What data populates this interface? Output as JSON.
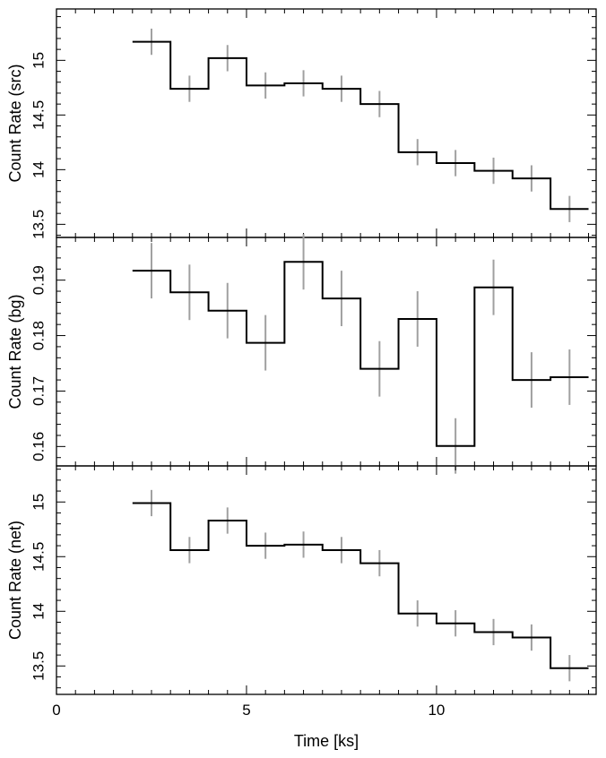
{
  "chart_data": [
    {
      "type": "line",
      "style": "step",
      "ylabel": "Count Rate (src)",
      "xlim": [
        0,
        14.2
      ],
      "ylim": [
        13.38,
        15.47
      ],
      "yticks": [
        13.5,
        14,
        14.5,
        15
      ],
      "ytick_labels": [
        "13.5",
        "14",
        "14.5",
        "15"
      ],
      "xticks": [
        0,
        5,
        10
      ],
      "bin_edges": [
        2,
        3,
        4,
        5,
        6,
        7,
        8,
        9,
        10,
        11,
        12,
        13,
        14
      ],
      "x": [
        2.5,
        3.5,
        4.5,
        5.5,
        6.5,
        7.5,
        8.5,
        9.5,
        10.5,
        11.5,
        12.5,
        13.5
      ],
      "values": [
        15.17,
        14.74,
        15.02,
        14.77,
        14.79,
        14.74,
        14.6,
        14.16,
        14.06,
        13.99,
        13.92,
        13.64
      ],
      "errors": [
        0.12,
        0.12,
        0.12,
        0.12,
        0.12,
        0.12,
        0.12,
        0.12,
        0.12,
        0.12,
        0.12,
        0.12
      ],
      "line_color": "#000000",
      "error_color": "#a0a0a0"
    },
    {
      "type": "line",
      "style": "step",
      "ylabel": "Count Rate (bg)",
      "xlim": [
        0,
        14.2
      ],
      "ylim": [
        0.1565,
        0.1977
      ],
      "yticks": [
        0.16,
        0.17,
        0.18,
        0.19
      ],
      "ytick_labels": [
        "0.16",
        "0.17",
        "0.18",
        "0.19"
      ],
      "xticks": [
        0,
        5,
        10
      ],
      "bin_edges": [
        2,
        3,
        4,
        5,
        6,
        7,
        8,
        9,
        10,
        11,
        12,
        13,
        14
      ],
      "x": [
        2.5,
        3.5,
        4.5,
        5.5,
        6.5,
        7.5,
        8.5,
        9.5,
        10.5,
        11.5,
        12.5,
        13.5
      ],
      "values": [
        0.1917,
        0.1878,
        0.1845,
        0.1787,
        0.1933,
        0.1867,
        0.174,
        0.183,
        0.1601,
        0.1887,
        0.172,
        0.1725
      ],
      "errors": [
        0.005,
        0.005,
        0.005,
        0.005,
        0.005,
        0.005,
        0.005,
        0.005,
        0.005,
        0.005,
        0.005,
        0.005
      ],
      "line_color": "#000000",
      "error_color": "#a0a0a0"
    },
    {
      "type": "line",
      "style": "step",
      "ylabel": "Count Rate (net)",
      "xlabel": "Time [ks]",
      "xlim": [
        0,
        14.2
      ],
      "ylim": [
        13.24,
        15.33
      ],
      "yticks": [
        13.5,
        14,
        14.5,
        15
      ],
      "ytick_labels": [
        "13.5",
        "14",
        "14.5",
        "15"
      ],
      "xticks": [
        0,
        5,
        10
      ],
      "xtick_labels": [
        "0",
        "5",
        "10"
      ],
      "bin_edges": [
        2,
        3,
        4,
        5,
        6,
        7,
        8,
        9,
        10,
        11,
        12,
        13,
        14
      ],
      "x": [
        2.5,
        3.5,
        4.5,
        5.5,
        6.5,
        7.5,
        8.5,
        9.5,
        10.5,
        11.5,
        12.5,
        13.5
      ],
      "values": [
        14.99,
        14.56,
        14.83,
        14.6,
        14.61,
        14.56,
        14.44,
        13.98,
        13.89,
        13.81,
        13.76,
        13.48
      ],
      "errors": [
        0.12,
        0.12,
        0.12,
        0.12,
        0.12,
        0.12,
        0.12,
        0.12,
        0.12,
        0.12,
        0.12,
        0.12
      ],
      "line_color": "#000000",
      "error_color": "#a0a0a0"
    }
  ]
}
